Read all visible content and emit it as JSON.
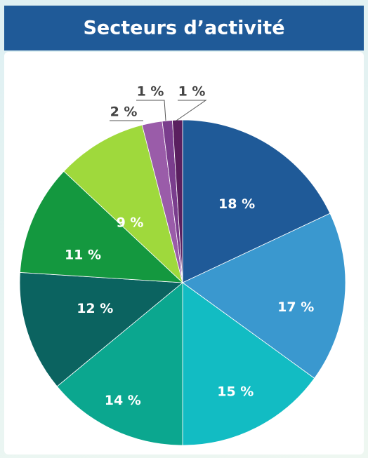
{
  "chart_data": {
    "type": "pie",
    "title": "Secteurs d’activité",
    "values": [
      18,
      17,
      15,
      14,
      12,
      11,
      9,
      2,
      1,
      1
    ],
    "value_labels": [
      "18 %",
      "17 %",
      "15 %",
      "14 %",
      "12 %",
      "11 %",
      "9 %",
      "2 %",
      "1 %",
      "1 %"
    ],
    "colors": [
      "#1f5a98",
      "#3a98cf",
      "#12bcc3",
      "#0ba78f",
      "#0b6360",
      "#14983f",
      "#9fd93c",
      "#9a5ca9",
      "#7a3d8d",
      "#5a1f5f"
    ]
  }
}
